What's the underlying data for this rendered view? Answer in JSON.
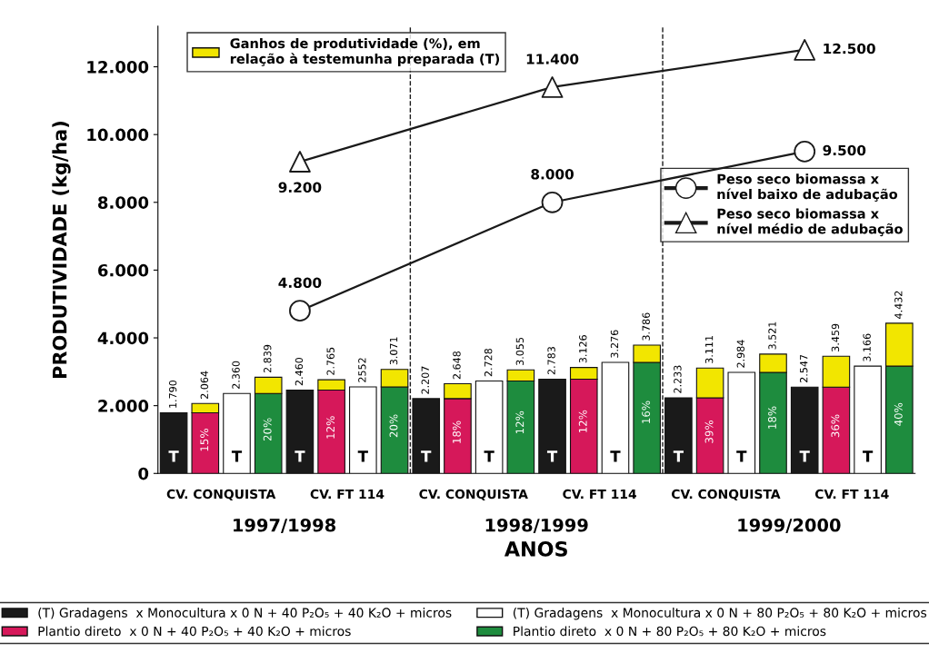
{
  "chart_data": {
    "type": "bar",
    "stacked": true,
    "ylabel": "PRODUTIVIDADE (kg/ha)",
    "xlabel": "ANOS",
    "categories": [
      null,
      null,
      null,
      null,
      null,
      null,
      null,
      null,
      null,
      null,
      null,
      null,
      null,
      null,
      null,
      null,
      null,
      null,
      null,
      null,
      null,
      null,
      null,
      null
    ],
    "ylim": [
      0,
      13200
    ],
    "yticks": [
      {
        "value": 0,
        "label": "0"
      },
      {
        "value": 2000,
        "label": "2.000"
      },
      {
        "value": 4000,
        "label": "4.000"
      },
      {
        "value": 6000,
        "label": "6.000"
      },
      {
        "value": 8000,
        "label": "8.000"
      },
      {
        "value": 10000,
        "label": "10.000"
      },
      {
        "value": 12000,
        "label": "12.000"
      }
    ],
    "series": [
      {
        "name": "(T) Gradagens  x Monocultura x 0 N + 40 P₂O₅ + 40 K₂O + micros",
        "color": "#1a1a1a",
        "values": [
          1790,
          null,
          null,
          null,
          2460,
          null,
          null,
          null,
          2207,
          null,
          null,
          null,
          2783,
          null,
          null,
          null,
          2233,
          null,
          null,
          null,
          2547,
          null,
          null,
          null
        ]
      },
      {
        "name": "Plantio direto  x 0 N + 40 P₂O₅ + 40 K₂O + micros",
        "color": "#d6185a",
        "values": [
          null,
          1790,
          null,
          null,
          null,
          2460,
          null,
          null,
          null,
          2207,
          null,
          null,
          null,
          2783,
          null,
          null,
          null,
          2233,
          null,
          null,
          null,
          2547,
          null,
          null
        ]
      },
      {
        "name": "(T) Gradagens  x Monocultura x 0 N + 80 P₂O₅ + 80 K₂O + micros",
        "color": "#ffffff",
        "values": [
          null,
          null,
          2360,
          null,
          null,
          null,
          2552,
          null,
          null,
          null,
          2728,
          null,
          null,
          null,
          3276,
          null,
          null,
          null,
          2984,
          null,
          null,
          null,
          3166,
          null
        ]
      },
      {
        "name": "Plantio direto  x 0 N + 80 P₂O₅ + 80 K₂O + micros",
        "color": "#1e8c3e",
        "values": [
          null,
          null,
          null,
          2360,
          null,
          null,
          null,
          2552,
          null,
          null,
          null,
          2728,
          null,
          null,
          null,
          3276,
          null,
          null,
          null,
          2984,
          null,
          null,
          null,
          3166
        ]
      },
      {
        "name": "Ganhos de produtividade (%), em\nrelação à testemunha preparada (T)",
        "color": "#f2e600",
        "values": [
          null,
          274,
          null,
          479,
          null,
          305,
          null,
          519,
          null,
          441,
          null,
          327,
          null,
          343,
          null,
          510,
          null,
          878,
          null,
          537,
          null,
          912,
          null,
          1266
        ]
      },
      {
        "type": "line",
        "name": "Peso seco biomassa x\nnível baixo de adubação",
        "color": "#1a1a1a",
        "marker": "circle",
        "values": [
          null,
          null,
          null,
          null,
          4800,
          null,
          null,
          null,
          null,
          null,
          null,
          null,
          8000,
          null,
          null,
          null,
          null,
          null,
          null,
          null,
          9500,
          null,
          null,
          null
        ],
        "value_labels": [
          null,
          null,
          null,
          null,
          "4.800",
          null,
          null,
          null,
          null,
          null,
          null,
          null,
          "8.000",
          null,
          null,
          null,
          null,
          null,
          null,
          null,
          "9.500",
          null,
          null,
          null
        ]
      },
      {
        "type": "line",
        "name": "Peso seco biomassa x\nnível médio de adubação",
        "color": "#1a1a1a",
        "marker": "triangle",
        "values": [
          null,
          null,
          null,
          null,
          9200,
          null,
          null,
          null,
          null,
          null,
          null,
          null,
          11400,
          null,
          null,
          null,
          null,
          null,
          null,
          null,
          12500,
          null,
          null,
          null
        ],
        "value_labels": [
          null,
          null,
          null,
          null,
          "9.200",
          null,
          null,
          null,
          null,
          null,
          null,
          null,
          "11.400",
          null,
          null,
          null,
          null,
          null,
          null,
          null,
          "12.500",
          null,
          null,
          null
        ]
      }
    ],
    "totals": [
      "1.790",
      "2.064",
      "2.360",
      "2.839",
      "2.460",
      "2.765",
      "2552",
      "3.071",
      "2.207",
      "2.648",
      "2.728",
      "3.055",
      "2.783",
      "3.126",
      "3.276",
      "3.786",
      "2.233",
      "3.111",
      "2.984",
      "3.521",
      "2.547",
      "3.459",
      "3.166",
      "4.432"
    ],
    "annotations": [
      "CV. CONQUISTA",
      "CV. FT 114",
      "CV. CONQUISTA",
      "CV. FT 114",
      "CV. CONQUISTA",
      "CV. FT 114",
      "1997/1998",
      "1998/1999",
      "1999/2000",
      "T",
      "15%",
      "T",
      "20%",
      "T",
      "12%",
      "T",
      "20%",
      "T",
      "18%",
      "T",
      "12%",
      "T",
      "12%",
      "T",
      "16%",
      "T",
      "39%",
      "T",
      "18%",
      "T",
      "36%",
      "T",
      "40%"
    ],
    "legend": "bottom",
    "grid": false
  }
}
